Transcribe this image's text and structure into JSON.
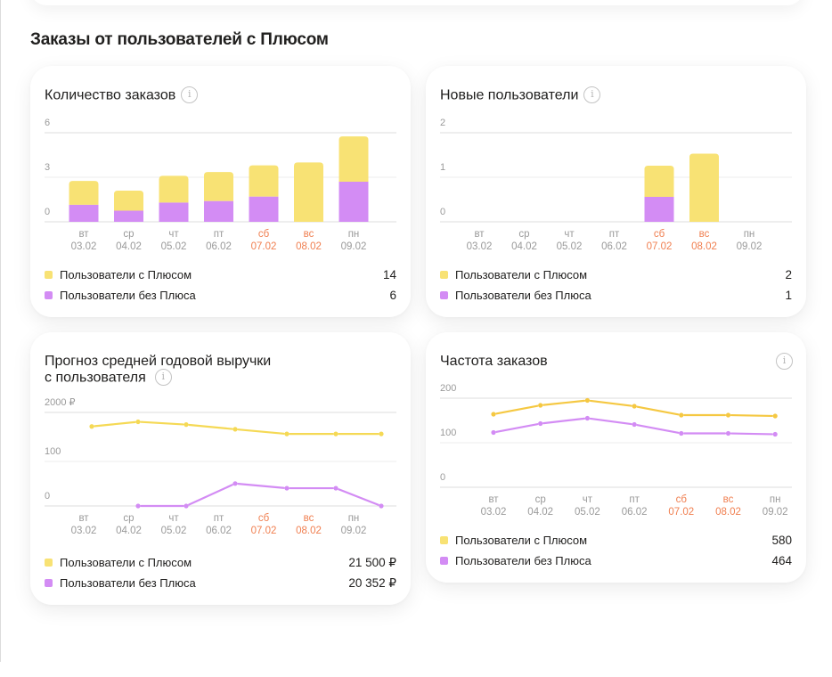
{
  "section_title": "Заказы от пользователей с Плюсом",
  "colors": {
    "plus": "#f8e274",
    "plus_line": "#f5d955",
    "plus_line_freq": "#f5c842",
    "no_plus": "#d38cf4",
    "weekend": "#f07f50",
    "axis_text": "#9a9a9a",
    "grid": "#e6e6e6"
  },
  "days": [
    {
      "dow": "вт",
      "date": "03.02",
      "weekend": false
    },
    {
      "dow": "ср",
      "date": "04.02",
      "weekend": false
    },
    {
      "dow": "чт",
      "date": "05.02",
      "weekend": false
    },
    {
      "dow": "пт",
      "date": "06.02",
      "weekend": false
    },
    {
      "dow": "сб",
      "date": "07.02",
      "weekend": true
    },
    {
      "dow": "вс",
      "date": "08.02",
      "weekend": true
    },
    {
      "dow": "пн",
      "date": "09.02",
      "weekend": false
    }
  ],
  "cards": {
    "orders": {
      "title": "Количество заказов",
      "info_icon": "info-icon",
      "legend": [
        {
          "label": "Пользователи с Плюсом",
          "value": "14"
        },
        {
          "label": "Пользователи без Плюса",
          "value": "6"
        }
      ]
    },
    "new_users": {
      "title": "Новые пользователи",
      "info_icon": "info-icon",
      "legend": [
        {
          "label": "Пользователи с Плюсом",
          "value": "2"
        },
        {
          "label": "Пользователи без Плюса",
          "value": "1"
        }
      ]
    },
    "revenue": {
      "title_line1": "Прогноз средней годовой выручки",
      "title_line2": "с пользователя",
      "info_icon": "info-icon",
      "legend": [
        {
          "label": "Пользователи с Плюсом",
          "value": "21 500 ₽"
        },
        {
          "label": "Пользователи без Плюса",
          "value": "20 352 ₽"
        }
      ]
    },
    "frequency": {
      "title": "Частота заказов",
      "info_icon": "info-icon",
      "legend": [
        {
          "label": "Пользователи с Плюсом",
          "value": "580"
        },
        {
          "label": "Пользователи без Плюса",
          "value": "464"
        }
      ]
    }
  },
  "chart_data": [
    {
      "id": "orders",
      "type": "bar",
      "stacked": true,
      "title": "Количество заказов",
      "categories": [
        "вт 03.02",
        "ср 04.02",
        "чт 05.02",
        "пт 06.02",
        "сб 07.02",
        "вс 08.02",
        "пн 09.02"
      ],
      "y_ticks": [
        "0",
        "3",
        "6"
      ],
      "ylim": [
        0,
        6
      ],
      "series": [
        {
          "name": "Пользователи без Плюса",
          "color": "#d38cf4",
          "values": [
            1.15,
            0.75,
            1.3,
            1.4,
            1.7,
            0,
            2.7
          ]
        },
        {
          "name": "Пользователи с Плюсом",
          "color": "#f8e274",
          "values": [
            1.6,
            1.35,
            1.8,
            1.95,
            2.1,
            4.0,
            3.05
          ]
        }
      ],
      "grid": true
    },
    {
      "id": "new_users",
      "type": "bar",
      "stacked": true,
      "title": "Новые пользователи",
      "categories": [
        "вт 03.02",
        "ср 04.02",
        "чт 05.02",
        "пт 06.02",
        "сб 07.02",
        "вс 08.02",
        "пн 09.02"
      ],
      "y_ticks": [
        "0",
        "1",
        "2"
      ],
      "ylim": [
        0,
        2
      ],
      "series": [
        {
          "name": "Пользователи без Плюса",
          "color": "#d38cf4",
          "values": [
            0,
            0,
            0,
            0,
            0.56,
            0,
            0
          ]
        },
        {
          "name": "Пользователи с Плюсом",
          "color": "#f8e274",
          "values": [
            0,
            0,
            0,
            0,
            0.7,
            1.53,
            0
          ]
        }
      ],
      "grid": true
    },
    {
      "id": "revenue",
      "type": "line",
      "title": "Прогноз средней годовой выручки с пользователя",
      "categories": [
        "вт 03.02",
        "ср 04.02",
        "чт 05.02",
        "пт 06.02",
        "сб 07.02",
        "вс 08.02",
        "пн 09.02"
      ],
      "y_ticks": [
        "0",
        "100",
        "2000 ₽"
      ],
      "y_scale_note": "ticks evenly spaced (0, 100, 2000 ₽); values given as position on a 0–2 tick-index scale",
      "ylim": [
        0,
        2
      ],
      "series": [
        {
          "name": "Пользователи с Плюсом",
          "color": "#f5d955",
          "values": [
            1.7,
            1.8,
            1.74,
            1.64,
            1.54,
            1.54,
            1.54
          ]
        },
        {
          "name": "Пользователи без Плюса",
          "color": "#d38cf4",
          "values": [
            null,
            0,
            0,
            0.48,
            0.38,
            0.38,
            0
          ]
        }
      ],
      "grid": true
    },
    {
      "id": "frequency",
      "type": "line",
      "title": "Частота заказов",
      "categories": [
        "вт 03.02",
        "ср 04.02",
        "чт 05.02",
        "пт 06.02",
        "сб 07.02",
        "вс 08.02",
        "пн 09.02"
      ],
      "y_ticks": [
        "0",
        "100",
        "200"
      ],
      "ylim": [
        0,
        200
      ],
      "series": [
        {
          "name": "Пользователи с Плюсом",
          "color": "#f5c842",
          "values": [
            164,
            184,
            195,
            182,
            162,
            162,
            160
          ]
        },
        {
          "name": "Пользователи без Плюса",
          "color": "#d38cf4",
          "values": [
            123,
            143,
            155,
            141,
            121,
            121,
            119
          ]
        }
      ],
      "grid": true
    }
  ]
}
